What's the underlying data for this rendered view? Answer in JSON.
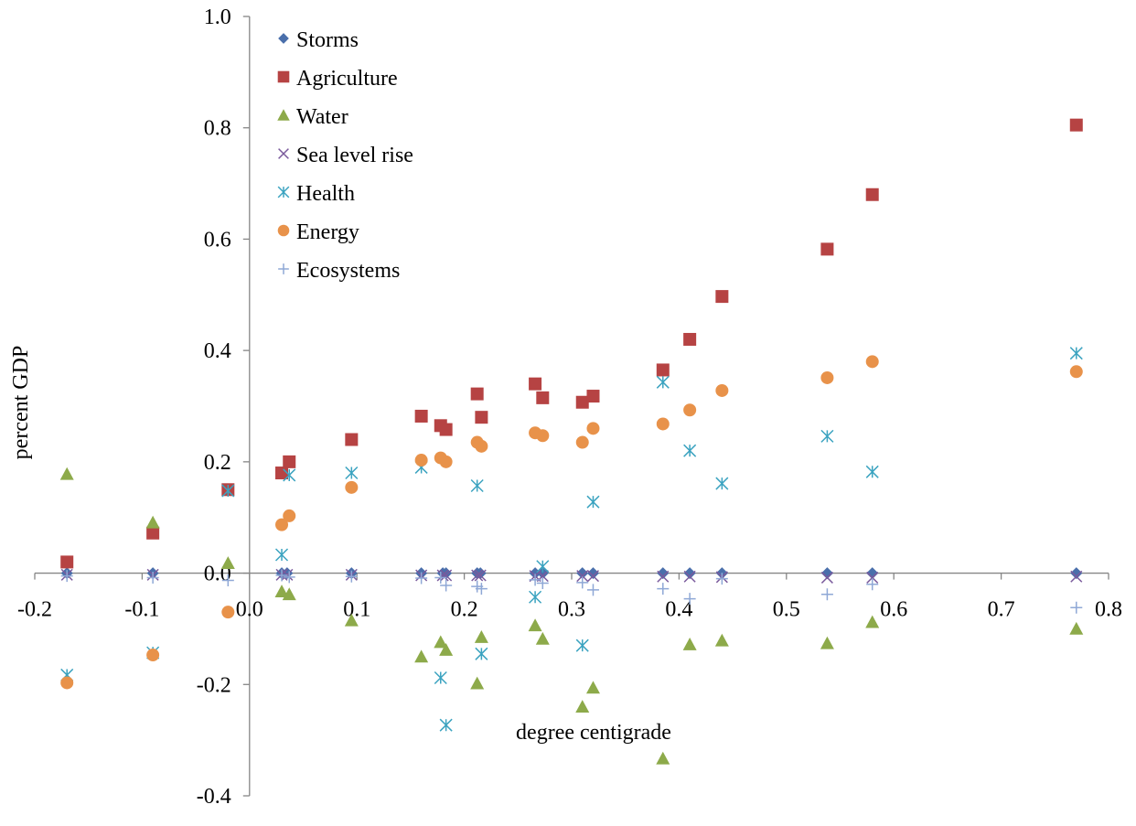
{
  "chart_data": {
    "type": "scatter",
    "title": "",
    "xlabel": "degree centigrade",
    "ylabel": "percent GDP",
    "xlim": [
      -0.2,
      0.8
    ],
    "ylim": [
      -0.4,
      1.0
    ],
    "x_ticks": [
      "-0.2",
      "-0.1",
      "0.0",
      "0.1",
      "0.2",
      "0.3",
      "0.4",
      "0.5",
      "0.6",
      "0.7",
      "0.8"
    ],
    "y_ticks": [
      "-0.4",
      "-0.2",
      "0.0",
      "0.2",
      "0.4",
      "0.6",
      "0.8",
      "1.0"
    ],
    "grid": false,
    "legend_position": "top-left",
    "series": [
      {
        "name": "Storms",
        "marker": "diamond",
        "color": "#4A6FAB",
        "points": [
          [
            -0.17,
            0
          ],
          [
            -0.09,
            0
          ],
          [
            0.03,
            0
          ],
          [
            0.035,
            0
          ],
          [
            0.095,
            0
          ],
          [
            0.16,
            0
          ],
          [
            0.18,
            0
          ],
          [
            0.183,
            0
          ],
          [
            0.212,
            0
          ],
          [
            0.215,
            0
          ],
          [
            0.266,
            0
          ],
          [
            0.273,
            0
          ],
          [
            0.31,
            0
          ],
          [
            0.32,
            0
          ],
          [
            0.385,
            0
          ],
          [
            0.41,
            0
          ],
          [
            0.44,
            0
          ],
          [
            0.538,
            0
          ],
          [
            0.58,
            0
          ],
          [
            0.77,
            0
          ]
        ]
      },
      {
        "name": "Agriculture",
        "marker": "square",
        "color": "#B64343",
        "points": [
          [
            -0.17,
            0.02
          ],
          [
            -0.09,
            0.072
          ],
          [
            -0.02,
            0.15
          ],
          [
            0.03,
            0.18
          ],
          [
            0.037,
            0.2
          ],
          [
            0.095,
            0.24
          ],
          [
            0.16,
            0.282
          ],
          [
            0.178,
            0.265
          ],
          [
            0.183,
            0.258
          ],
          [
            0.212,
            0.322
          ],
          [
            0.216,
            0.28
          ],
          [
            0.266,
            0.34
          ],
          [
            0.273,
            0.315
          ],
          [
            0.31,
            0.307
          ],
          [
            0.32,
            0.318
          ],
          [
            0.385,
            0.365
          ],
          [
            0.41,
            0.42
          ],
          [
            0.44,
            0.497
          ],
          [
            0.538,
            0.582
          ],
          [
            0.58,
            0.68
          ],
          [
            0.77,
            0.805
          ]
        ]
      },
      {
        "name": "Water",
        "marker": "triangle",
        "color": "#8DAA4A",
        "points": [
          [
            -0.17,
            0.178
          ],
          [
            -0.09,
            0.091
          ],
          [
            -0.02,
            0.018
          ],
          [
            0.03,
            -0.033
          ],
          [
            0.037,
            -0.038
          ],
          [
            0.095,
            -0.085
          ],
          [
            0.16,
            -0.15
          ],
          [
            0.178,
            -0.124
          ],
          [
            0.183,
            -0.138
          ],
          [
            0.212,
            -0.198
          ],
          [
            0.216,
            -0.115
          ],
          [
            0.266,
            -0.094
          ],
          [
            0.273,
            -0.118
          ],
          [
            0.31,
            -0.24
          ],
          [
            0.32,
            -0.206
          ],
          [
            0.385,
            -0.333
          ],
          [
            0.41,
            -0.128
          ],
          [
            0.44,
            -0.121
          ],
          [
            0.538,
            -0.126
          ],
          [
            0.58,
            -0.088
          ],
          [
            0.77,
            -0.1
          ]
        ]
      },
      {
        "name": "Sea level rise",
        "marker": "x",
        "color": "#7A5A9C",
        "points": [
          [
            -0.17,
            -0.003
          ],
          [
            -0.09,
            -0.003
          ],
          [
            0.03,
            -0.003
          ],
          [
            0.035,
            -0.003
          ],
          [
            0.095,
            -0.003
          ],
          [
            0.16,
            -0.004
          ],
          [
            0.18,
            -0.004
          ],
          [
            0.183,
            -0.004
          ],
          [
            0.212,
            -0.004
          ],
          [
            0.215,
            -0.004
          ],
          [
            0.266,
            -0.005
          ],
          [
            0.273,
            -0.005
          ],
          [
            0.31,
            -0.005
          ],
          [
            0.32,
            -0.005
          ],
          [
            0.385,
            -0.006
          ],
          [
            0.41,
            -0.006
          ],
          [
            0.44,
            -0.007
          ],
          [
            0.538,
            -0.008
          ],
          [
            0.58,
            -0.008
          ],
          [
            0.77,
            -0.006
          ]
        ]
      },
      {
        "name": "Health",
        "marker": "star",
        "color": "#3BA3C0",
        "points": [
          [
            -0.17,
            -0.183
          ],
          [
            -0.09,
            -0.143
          ],
          [
            -0.02,
            0.148
          ],
          [
            0.03,
            0.033
          ],
          [
            0.037,
            0.176
          ],
          [
            0.095,
            0.18
          ],
          [
            0.16,
            0.19
          ],
          [
            0.178,
            -0.188
          ],
          [
            0.183,
            -0.273
          ],
          [
            0.212,
            0.157
          ],
          [
            0.216,
            -0.145
          ],
          [
            0.266,
            -0.043
          ],
          [
            0.273,
            0.012
          ],
          [
            0.31,
            -0.13
          ],
          [
            0.32,
            0.128
          ],
          [
            0.385,
            0.343
          ],
          [
            0.41,
            0.22
          ],
          [
            0.44,
            0.161
          ],
          [
            0.538,
            0.246
          ],
          [
            0.58,
            0.182
          ],
          [
            0.77,
            0.395
          ]
        ]
      },
      {
        "name": "Energy",
        "marker": "circle",
        "color": "#E8924A",
        "points": [
          [
            -0.17,
            -0.197
          ],
          [
            -0.09,
            -0.147
          ],
          [
            -0.02,
            -0.07
          ],
          [
            0.03,
            0.087
          ],
          [
            0.037,
            0.103
          ],
          [
            0.095,
            0.154
          ],
          [
            0.16,
            0.203
          ],
          [
            0.178,
            0.207
          ],
          [
            0.183,
            0.2
          ],
          [
            0.212,
            0.235
          ],
          [
            0.216,
            0.228
          ],
          [
            0.266,
            0.252
          ],
          [
            0.273,
            0.247
          ],
          [
            0.31,
            0.235
          ],
          [
            0.32,
            0.26
          ],
          [
            0.385,
            0.268
          ],
          [
            0.41,
            0.293
          ],
          [
            0.44,
            0.328
          ],
          [
            0.538,
            0.351
          ],
          [
            0.58,
            0.38
          ],
          [
            0.77,
            0.362
          ]
        ]
      },
      {
        "name": "Ecosystems",
        "marker": "plus",
        "color": "#8FA8D6",
        "points": [
          [
            -0.17,
            -0.005
          ],
          [
            -0.09,
            -0.008
          ],
          [
            -0.02,
            -0.013
          ],
          [
            0.03,
            -0.004
          ],
          [
            0.037,
            -0.007
          ],
          [
            0.095,
            -0.006
          ],
          [
            0.16,
            -0.009
          ],
          [
            0.178,
            -0.008
          ],
          [
            0.183,
            -0.022
          ],
          [
            0.212,
            -0.024
          ],
          [
            0.216,
            -0.028
          ],
          [
            0.266,
            -0.012
          ],
          [
            0.273,
            -0.018
          ],
          [
            0.31,
            -0.017
          ],
          [
            0.32,
            -0.03
          ],
          [
            0.385,
            -0.028
          ],
          [
            0.41,
            -0.046
          ],
          [
            0.44,
            -0.01
          ],
          [
            0.538,
            -0.038
          ],
          [
            0.58,
            -0.02
          ],
          [
            0.77,
            -0.062
          ]
        ]
      }
    ]
  }
}
